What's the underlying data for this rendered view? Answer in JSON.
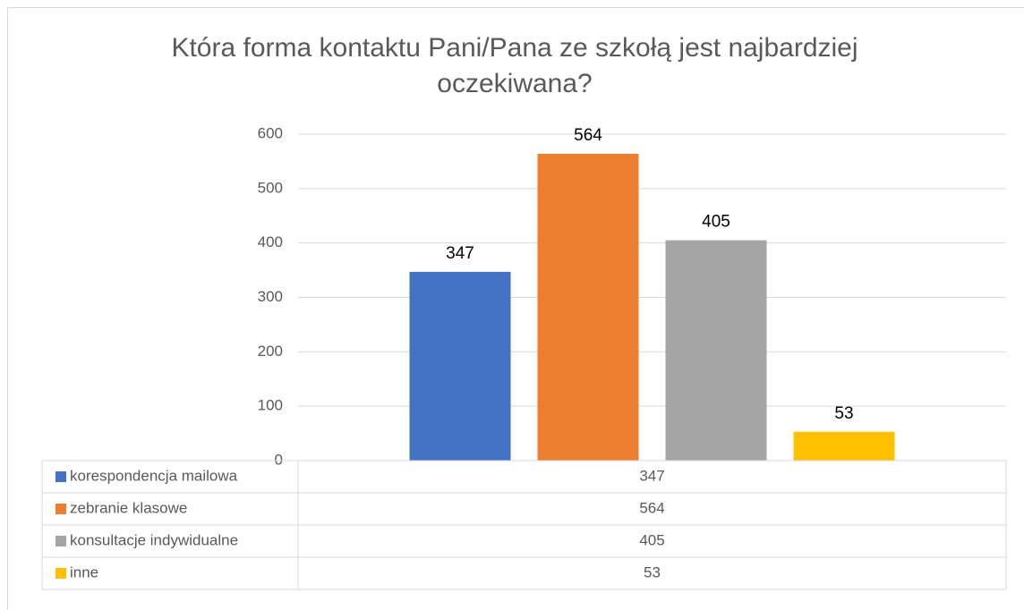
{
  "chart_data": {
    "type": "bar",
    "title": "Która forma kontaktu Pani/Pana ze szkołą jest najbardziej oczekiwana?",
    "categories": [
      null
    ],
    "series": [
      {
        "name": "korespondencja mailowa",
        "color": "#4472c4",
        "values": [
          347
        ]
      },
      {
        "name": "zebranie klasowe",
        "color": "#ed7d31",
        "values": [
          564
        ]
      },
      {
        "name": "konsultacje indywidualne",
        "color": "#a5a5a5",
        "values": [
          405
        ]
      },
      {
        "name": "inne",
        "color": "#ffc000",
        "values": [
          53
        ]
      }
    ],
    "ylim": [
      0,
      600
    ],
    "yticks": [
      0,
      100,
      200,
      300,
      400,
      500,
      600
    ],
    "grid": true,
    "data_table": true
  }
}
